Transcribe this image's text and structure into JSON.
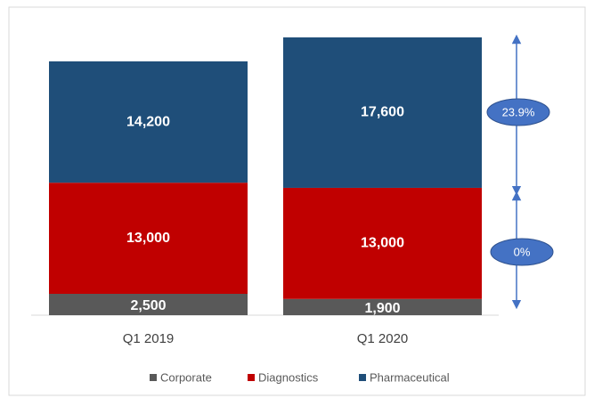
{
  "chart_data": {
    "type": "stacked-bar",
    "categories": [
      "Q1 2019",
      "Q1 2020"
    ],
    "series": [
      {
        "name": "Corporate",
        "color": "#595959",
        "values": [
          2500,
          1900
        ],
        "value_labels": [
          "2,500",
          "1,900"
        ]
      },
      {
        "name": "Diagnostics",
        "color": "#c00000",
        "values": [
          13000,
          13000
        ],
        "value_labels": [
          "13,000",
          "13,000"
        ]
      },
      {
        "name": "Pharmaceutical",
        "color": "#1f4e79",
        "values": [
          14200,
          17600
        ],
        "value_labels": [
          "14,200",
          "17,600"
        ]
      }
    ],
    "annotations": [
      "23.9%",
      "0%"
    ]
  }
}
